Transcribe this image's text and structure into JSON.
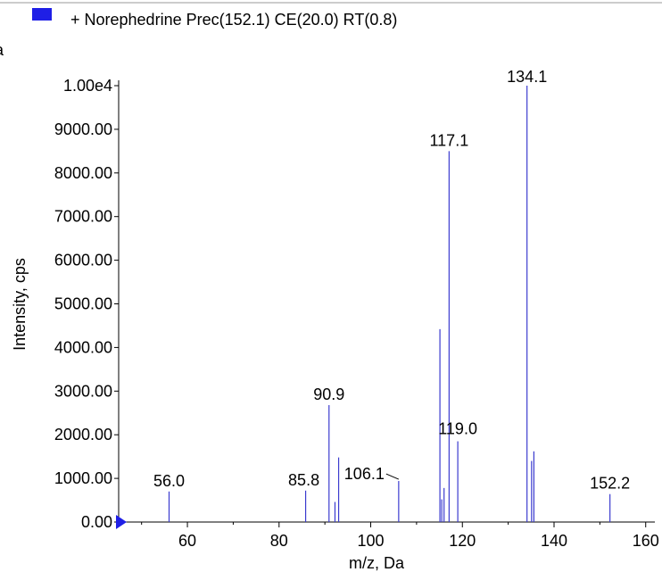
{
  "chart_data": {
    "type": "bar",
    "panel_label": "a",
    "legend": [
      {
        "label": "+ Norephedrine Prec(152.1) CE(20.0) RT(0.8)",
        "color": "#1f1fe6"
      }
    ],
    "xlabel": "m/z, Da",
    "ylabel": "Intensity, cps",
    "xlim": [
      45,
      162
    ],
    "ylim": [
      0,
      10000
    ],
    "x_ticks": [
      60,
      80,
      100,
      120,
      140,
      160
    ],
    "y_ticks": [
      {
        "value": 0,
        "label": "0.00"
      },
      {
        "value": 1000,
        "label": "1000.00"
      },
      {
        "value": 2000,
        "label": "2000.00"
      },
      {
        "value": 3000,
        "label": "3000.00"
      },
      {
        "value": 4000,
        "label": "4000.00"
      },
      {
        "value": 5000,
        "label": "5000.00"
      },
      {
        "value": 6000,
        "label": "6000.00"
      },
      {
        "value": 7000,
        "label": "7000.00"
      },
      {
        "value": 8000,
        "label": "8000.00"
      },
      {
        "value": 9000,
        "label": "9000.00"
      },
      {
        "value": 10000,
        "label": "1.00e4"
      }
    ],
    "bar_color": "#3b3bcf",
    "peaks": [
      {
        "x": 56.0,
        "y": 700,
        "label": "56.0"
      },
      {
        "x": 85.8,
        "y": 720,
        "label": "85.8"
      },
      {
        "x": 90.9,
        "y": 2680,
        "label": "90.9"
      },
      {
        "x": 92.2,
        "y": 460
      },
      {
        "x": 93.0,
        "y": 1480
      },
      {
        "x": 106.1,
        "y": 940,
        "label": "106.1"
      },
      {
        "x": 115.1,
        "y": 4420
      },
      {
        "x": 115.5,
        "y": 520
      },
      {
        "x": 116.0,
        "y": 780
      },
      {
        "x": 117.1,
        "y": 8500,
        "label": "117.1"
      },
      {
        "x": 119.0,
        "y": 1850,
        "label": "119.0"
      },
      {
        "x": 134.1,
        "y": 10000,
        "label": "134.1"
      },
      {
        "x": 135.1,
        "y": 1400
      },
      {
        "x": 135.6,
        "y": 1620
      },
      {
        "x": 152.2,
        "y": 640,
        "label": "152.2"
      }
    ]
  }
}
